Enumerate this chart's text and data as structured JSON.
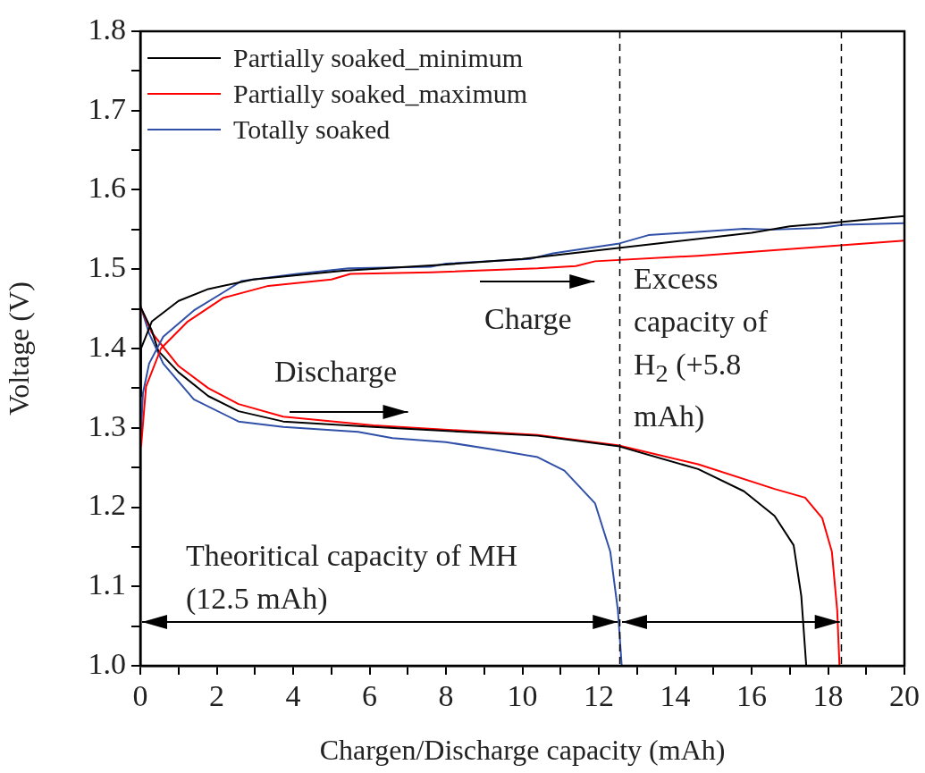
{
  "chart_data": {
    "type": "line",
    "xlabel": "Chargen/Discharge capacity (mAh)",
    "ylabel": "Voltage (V)",
    "xlim": [
      0,
      20
    ],
    "xticks": [
      0,
      {
        "value": 1,
        "label": null
      },
      2,
      {
        "value": 3,
        "label": null
      },
      4,
      {
        "value": 5,
        "label": null
      },
      6,
      {
        "value": 7,
        "label": null
      },
      8,
      {
        "value": 9,
        "label": null
      },
      10,
      {
        "value": 11,
        "label": null
      },
      12,
      {
        "value": 13,
        "label": null
      },
      14,
      {
        "value": 15,
        "label": null
      },
      16,
      {
        "value": 17,
        "label": null
      },
      18,
      {
        "value": 19,
        "label": null
      },
      20
    ],
    "ylim": [
      1.0,
      1.8
    ],
    "yticks": [
      {
        "value": 1.0,
        "label": "1.0"
      },
      {
        "value": 1.05,
        "label": null
      },
      1.1,
      {
        "value": 1.15,
        "label": null
      },
      1.2,
      {
        "value": 1.25,
        "label": null
      },
      1.3,
      {
        "value": 1.35,
        "label": null
      },
      1.4,
      {
        "value": 1.45,
        "label": null
      },
      1.5,
      {
        "value": 1.55,
        "label": null
      },
      1.6,
      {
        "value": 1.65,
        "label": null
      },
      1.7,
      {
        "value": 1.75,
        "label": null
      },
      1.8
    ],
    "grid": false,
    "legend": "top left",
    "marker": "none",
    "line_style": "solid",
    "series": [
      {
        "name": "Partially soaked_minimum",
        "color": "#000000",
        "x": [
          0,
          0.02,
          0.3,
          1.0,
          1.78,
          2.95,
          5.3,
          8,
          10,
          12,
          14,
          16,
          17,
          18,
          20
        ],
        "values": [
          1.34,
          1.4,
          1.434,
          1.46,
          1.475,
          1.487,
          1.498,
          1.506,
          1.513,
          1.524,
          1.535,
          1.546,
          1.554,
          1.558,
          1.567
        ]
      },
      {
        "name": "Partially soaked_maximum",
        "color": "#ff0000",
        "x": [
          0.02,
          0.15,
          0.54,
          1.24,
          2.18,
          3.35,
          5.0,
          5.5,
          7.6,
          10.4,
          11.4,
          11.9,
          14.6,
          20
        ],
        "values": [
          1.276,
          1.352,
          1.4,
          1.434,
          1.464,
          1.479,
          1.487,
          1.494,
          1.496,
          1.501,
          1.504,
          1.51,
          1.517,
          1.536
        ]
      },
      {
        "name": "Totally soaked",
        "color": "#3050a8",
        "x": [
          0.02,
          0.07,
          0.23,
          0.6,
          1.4,
          2.18,
          2.64,
          4.1,
          5.45,
          7.6,
          8.0,
          10.2,
          10.8,
          12.5,
          13.3,
          15.8,
          16.6,
          17.8,
          18.4,
          20
        ],
        "values": [
          1.295,
          1.344,
          1.381,
          1.415,
          1.448,
          1.471,
          1.485,
          1.494,
          1.501,
          1.503,
          1.507,
          1.513,
          1.52,
          1.532,
          1.543,
          1.551,
          1.55,
          1.552,
          1.556,
          1.558
        ]
      },
      {
        "color": "#000000",
        "x": [
          0,
          0.3,
          0.47,
          1.0,
          1.78,
          2.57,
          3.74,
          6.1,
          10.4,
          12.5,
          14.6,
          15.8,
          16.6,
          17.1,
          17.3,
          17.43
        ],
        "values": [
          1.453,
          1.423,
          1.397,
          1.37,
          1.34,
          1.321,
          1.308,
          1.301,
          1.29,
          1.277,
          1.248,
          1.22,
          1.189,
          1.152,
          1.088,
          1.0
        ]
      },
      {
        "color": "#ff0000",
        "x": [
          0,
          0.3,
          1.0,
          1.78,
          2.57,
          3.74,
          6.1,
          10.4,
          12.5,
          14.6,
          16.6,
          17.4,
          17.85,
          18.1,
          18.24,
          18.3
        ],
        "values": [
          1.453,
          1.42,
          1.378,
          1.35,
          1.33,
          1.314,
          1.303,
          1.291,
          1.278,
          1.254,
          1.223,
          1.212,
          1.186,
          1.144,
          1.07,
          1.0
        ]
      },
      {
        "color": "#3050a8",
        "x": [
          0,
          0.23,
          0.6,
          1.4,
          2.57,
          3.74,
          5.7,
          6.6,
          8.0,
          9.2,
          10.4,
          11.1,
          11.9,
          12.3,
          12.5,
          12.6
        ],
        "values": [
          1.455,
          1.419,
          1.381,
          1.336,
          1.308,
          1.301,
          1.295,
          1.287,
          1.282,
          1.273,
          1.263,
          1.246,
          1.205,
          1.144,
          1.07,
          1.0
        ]
      }
    ],
    "ref_lines": [
      {
        "axis": "x",
        "value": 12.55,
        "color": "#000000",
        "line_style": "dashed"
      },
      {
        "axis": "x",
        "value": 18.35,
        "color": "#000000",
        "line_style": "dashed"
      }
    ],
    "annotations": [
      "Discharge",
      "Charge",
      "Excess capacity of H$_{2}$ (+5.8 mAh)",
      "Theoritical capacity of MH (12.5 mAh)"
    ]
  }
}
